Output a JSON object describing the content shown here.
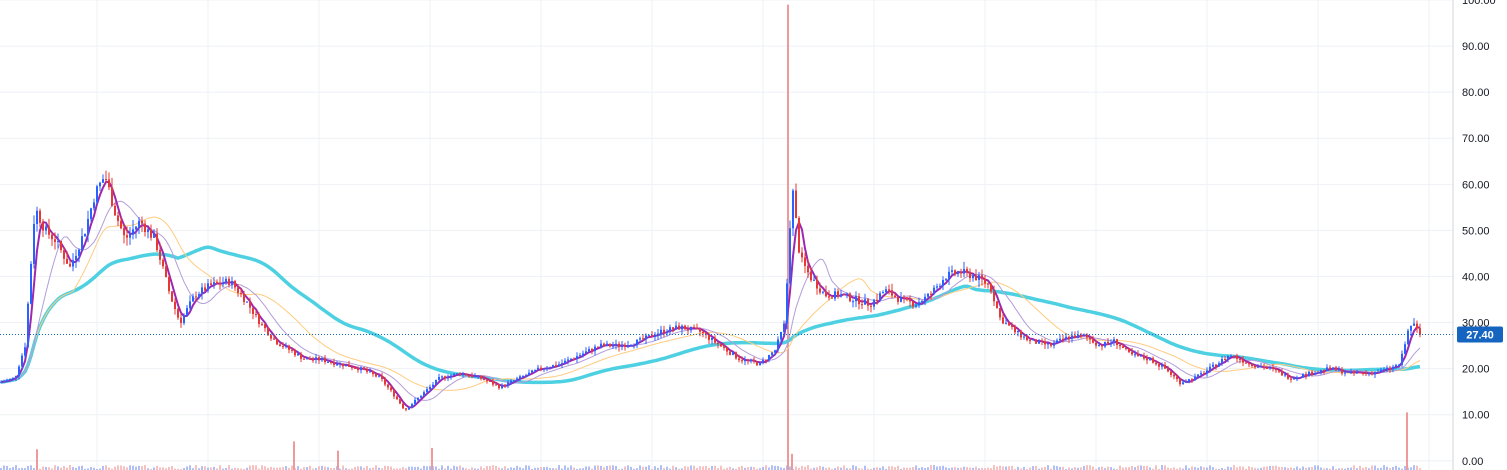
{
  "chart_data": {
    "type": "candlestick",
    "ylim": [
      -2,
      100
    ],
    "y_ticks": [
      "0.00",
      "10.00",
      "20.00",
      "30.00",
      "40.00",
      "50.00",
      "60.00",
      "70.00",
      "80.00",
      "90.00",
      "100.00"
    ],
    "y_tick_values": [
      0,
      10,
      20,
      30,
      40,
      50,
      60,
      70,
      80,
      90,
      100
    ],
    "last_price": 27.4,
    "last_price_label": "27.40",
    "grid": true,
    "colors": {
      "up": "#2962ff",
      "down": "#e53935",
      "ma_fast": "#9c27b0",
      "ma_mid": "#b39ddb",
      "ma_slow": "#ffcc80",
      "ma_long": "#4dd0e1",
      "price_tag": "#1565c0",
      "grid": "#eef1f5",
      "axis_text": "#131722"
    },
    "price_path": [
      [
        0,
        17
      ],
      [
        15,
        18
      ],
      [
        25,
        25
      ],
      [
        35,
        55
      ],
      [
        45,
        50
      ],
      [
        55,
        48
      ],
      [
        70,
        42
      ],
      [
        85,
        50
      ],
      [
        95,
        58
      ],
      [
        105,
        62
      ],
      [
        115,
        54
      ],
      [
        125,
        48
      ],
      [
        140,
        52
      ],
      [
        155,
        48
      ],
      [
        170,
        36
      ],
      [
        180,
        30
      ],
      [
        195,
        36
      ],
      [
        210,
        38
      ],
      [
        230,
        39
      ],
      [
        245,
        35
      ],
      [
        260,
        30
      ],
      [
        275,
        26
      ],
      [
        290,
        24
      ],
      [
        305,
        22
      ],
      [
        320,
        22
      ],
      [
        340,
        21
      ],
      [
        360,
        20
      ],
      [
        380,
        18
      ],
      [
        395,
        14
      ],
      [
        405,
        11
      ],
      [
        420,
        14
      ],
      [
        440,
        18
      ],
      [
        460,
        19
      ],
      [
        480,
        18
      ],
      [
        500,
        16
      ],
      [
        520,
        18
      ],
      [
        540,
        20
      ],
      [
        560,
        21
      ],
      [
        580,
        23
      ],
      [
        600,
        25
      ],
      [
        620,
        25
      ],
      [
        640,
        26
      ],
      [
        660,
        28
      ],
      [
        680,
        29
      ],
      [
        700,
        28
      ],
      [
        720,
        25
      ],
      [
        740,
        22
      ],
      [
        760,
        21
      ],
      [
        775,
        24
      ],
      [
        785,
        30
      ],
      [
        792,
        60
      ],
      [
        800,
        44
      ],
      [
        810,
        40
      ],
      [
        825,
        36
      ],
      [
        840,
        36
      ],
      [
        855,
        35
      ],
      [
        870,
        34
      ],
      [
        885,
        37
      ],
      [
        900,
        35
      ],
      [
        915,
        34
      ],
      [
        930,
        36
      ],
      [
        945,
        40
      ],
      [
        960,
        41
      ],
      [
        975,
        40
      ],
      [
        990,
        38
      ],
      [
        1000,
        31
      ],
      [
        1015,
        28
      ],
      [
        1030,
        26
      ],
      [
        1050,
        25
      ],
      [
        1070,
        27
      ],
      [
        1085,
        27
      ],
      [
        1100,
        25
      ],
      [
        1115,
        26
      ],
      [
        1130,
        23
      ],
      [
        1150,
        22
      ],
      [
        1165,
        20
      ],
      [
        1180,
        17
      ],
      [
        1195,
        18
      ],
      [
        1210,
        20
      ],
      [
        1230,
        23
      ],
      [
        1250,
        21
      ],
      [
        1270,
        20
      ],
      [
        1290,
        18
      ],
      [
        1310,
        19
      ],
      [
        1330,
        20
      ],
      [
        1350,
        19
      ],
      [
        1370,
        19
      ],
      [
        1390,
        20
      ],
      [
        1400,
        21
      ],
      [
        1408,
        28
      ],
      [
        1412,
        30
      ],
      [
        1420,
        27.4
      ]
    ],
    "volume_spikes": [
      [
        37,
        2.5
      ],
      [
        294,
        4.2
      ],
      [
        338,
        2.2
      ],
      [
        432,
        2.8
      ],
      [
        788,
        99
      ],
      [
        792,
        1.5
      ],
      [
        1407,
        10.5
      ]
    ]
  }
}
